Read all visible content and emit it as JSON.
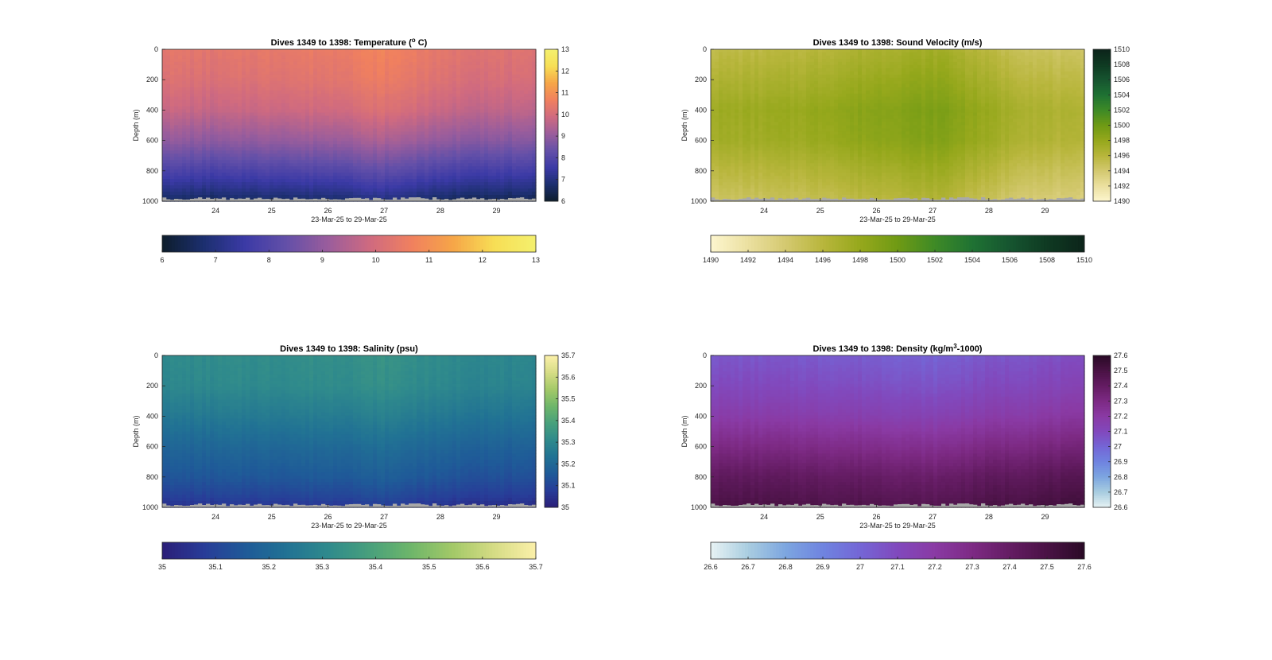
{
  "chart_data": [
    {
      "type": "heatmap",
      "title": "Dives 1349 to 1398: Temperature (",
      "title_sup": "o",
      "title_tail": " C)",
      "xlabel": "23-Mar-25 to 29-Mar-25",
      "ylabel": "Depth (m)",
      "x_ticks": [
        "24",
        "25",
        "26",
        "27",
        "28",
        "29"
      ],
      "x_tick_values": [
        24,
        25,
        26,
        27,
        28,
        29
      ],
      "xlim": [
        23.05,
        29.7
      ],
      "y_ticks": [
        "0",
        "200",
        "400",
        "600",
        "800",
        "1000"
      ],
      "y_tick_values": [
        0,
        200,
        400,
        600,
        800,
        1000
      ],
      "ylim": [
        0,
        1000
      ],
      "y_reversed": true,
      "colorbar": {
        "ticks": [
          "6",
          "7",
          "8",
          "9",
          "10",
          "11",
          "12",
          "13"
        ],
        "tick_values": [
          6,
          7,
          8,
          9,
          10,
          11,
          12,
          13
        ],
        "range": [
          6,
          13
        ],
        "colors": [
          "#0d1d2b",
          "#1c2f6f",
          "#3b3aa6",
          "#6450a8",
          "#9a5d9c",
          "#cf6a80",
          "#f0805f",
          "#f6a548",
          "#f7de55",
          "#f4f06e"
        ]
      },
      "profile": [
        [
          0,
          10.4
        ],
        [
          200,
          10.2
        ],
        [
          400,
          9.8
        ],
        [
          600,
          9.0
        ],
        [
          800,
          7.9
        ],
        [
          900,
          7.3
        ],
        [
          1000,
          6.6
        ]
      ],
      "day_offsets": [
        [
          23.1,
          0.0
        ],
        [
          24.0,
          -0.1
        ],
        [
          25.0,
          0.05
        ],
        [
          26.0,
          0.1
        ],
        [
          26.9,
          0.35
        ],
        [
          27.5,
          0.2
        ],
        [
          28.0,
          -0.05
        ],
        [
          29.0,
          -0.15
        ],
        [
          29.7,
          -0.25
        ]
      ]
    },
    {
      "type": "heatmap",
      "title": "Dives 1349 to 1398: Sound Velocity (m/s)",
      "xlabel": "23-Mar-25 to 29-Mar-25",
      "ylabel": "Depth (m)",
      "x_ticks": [
        "24",
        "25",
        "26",
        "27",
        "28",
        "29"
      ],
      "x_tick_values": [
        24,
        25,
        26,
        27,
        28,
        29
      ],
      "xlim": [
        23.05,
        29.7
      ],
      "y_ticks": [
        "0",
        "200",
        "400",
        "600",
        "800",
        "1000"
      ],
      "y_tick_values": [
        0,
        200,
        400,
        600,
        800,
        1000
      ],
      "ylim": [
        0,
        1000
      ],
      "y_reversed": true,
      "colorbar": {
        "ticks": [
          "1490",
          "1492",
          "1494",
          "1496",
          "1498",
          "1500",
          "1502",
          "1504",
          "1506",
          "1508",
          "1510"
        ],
        "tick_values": [
          1490,
          1492,
          1494,
          1496,
          1498,
          1500,
          1502,
          1504,
          1506,
          1508,
          1510
        ],
        "range": [
          1490,
          1510
        ],
        "colors": [
          "#fdf6cf",
          "#ebe0a0",
          "#d4c970",
          "#b8b63c",
          "#96a81c",
          "#6f9a14",
          "#3e8a26",
          "#1f7233",
          "#165530",
          "#0f3a22",
          "#0c241a"
        ]
      },
      "profile": [
        [
          0,
          1495.5
        ],
        [
          200,
          1496.5
        ],
        [
          400,
          1497.5
        ],
        [
          600,
          1497.2
        ],
        [
          800,
          1495.8
        ],
        [
          1000,
          1494.5
        ]
      ],
      "day_offsets": [
        [
          23.1,
          0.0
        ],
        [
          24.5,
          0.3
        ],
        [
          25.8,
          1.2
        ],
        [
          26.5,
          1.6
        ],
        [
          27.2,
          1.8
        ],
        [
          27.7,
          0.8
        ],
        [
          28.3,
          -0.2
        ],
        [
          29.0,
          -0.8
        ],
        [
          29.7,
          -1.2
        ]
      ]
    },
    {
      "type": "heatmap",
      "title": "Dives 1349 to 1398: Salinity (psu)",
      "xlabel": "23-Mar-25 to 29-Mar-25",
      "ylabel": "Depth (m)",
      "x_ticks": [
        "24",
        "25",
        "26",
        "27",
        "28",
        "29"
      ],
      "x_tick_values": [
        24,
        25,
        26,
        27,
        28,
        29
      ],
      "xlim": [
        23.05,
        29.7
      ],
      "y_ticks": [
        "0",
        "200",
        "400",
        "600",
        "800",
        "1000"
      ],
      "y_tick_values": [
        0,
        200,
        400,
        600,
        800,
        1000
      ],
      "ylim": [
        0,
        1000
      ],
      "y_reversed": true,
      "colorbar": {
        "ticks": [
          "35",
          "35.1",
          "35.2",
          "35.3",
          "35.4",
          "35.5",
          "35.6",
          "35.7"
        ],
        "tick_values": [
          35,
          35.1,
          35.2,
          35.3,
          35.4,
          35.5,
          35.6,
          35.7
        ],
        "range": [
          35,
          35.7
        ],
        "colors": [
          "#2b1e78",
          "#283c98",
          "#1f5a98",
          "#217294",
          "#2f8a8c",
          "#48a07c",
          "#6eb66a",
          "#a3c968",
          "#d6dc85",
          "#fbf0a9"
        ]
      },
      "profile": [
        [
          0,
          35.31
        ],
        [
          200,
          35.3
        ],
        [
          400,
          35.25
        ],
        [
          600,
          35.19
        ],
        [
          800,
          35.14
        ],
        [
          900,
          35.1
        ],
        [
          1000,
          35.05
        ]
      ],
      "day_offsets": [
        [
          23.1,
          0.0
        ],
        [
          25.0,
          0.01
        ],
        [
          26.5,
          0.02
        ],
        [
          27.0,
          0.03
        ],
        [
          28.0,
          0.0
        ],
        [
          29.0,
          -0.01
        ],
        [
          29.7,
          -0.02
        ]
      ]
    },
    {
      "type": "heatmap",
      "title": "Dives 1349 to 1398: Density (kg/m",
      "title_sup": "3",
      "title_tail": "-1000)",
      "xlabel": "23-Mar-25 to 29-Mar-25",
      "ylabel": "Depth (m)",
      "x_ticks": [
        "24",
        "25",
        "26",
        "27",
        "28",
        "29"
      ],
      "x_tick_values": [
        24,
        25,
        26,
        27,
        28,
        29
      ],
      "xlim": [
        23.05,
        29.7
      ],
      "y_ticks": [
        "0",
        "200",
        "400",
        "600",
        "800",
        "1000"
      ],
      "y_tick_values": [
        0,
        200,
        400,
        600,
        800,
        1000
      ],
      "ylim": [
        0,
        1000
      ],
      "y_reversed": true,
      "colorbar": {
        "ticks": [
          "26.6",
          "26.7",
          "26.8",
          "26.9",
          "27",
          "27.1",
          "27.2",
          "27.3",
          "27.4",
          "27.5",
          "27.6"
        ],
        "tick_values": [
          26.6,
          26.7,
          26.8,
          26.9,
          27,
          27.1,
          27.2,
          27.3,
          27.4,
          27.5,
          27.6
        ],
        "range": [
          26.6,
          27.6
        ],
        "colors": [
          "#e8f3f4",
          "#a9cde0",
          "#7da6e0",
          "#6f84e0",
          "#7466d6",
          "#8149bd",
          "#8a3aa4",
          "#7d2a84",
          "#641c63",
          "#4a1245",
          "#2a0a26"
        ]
      },
      "profile": [
        [
          0,
          27.05
        ],
        [
          200,
          27.1
        ],
        [
          400,
          27.18
        ],
        [
          600,
          27.3
        ],
        [
          800,
          27.42
        ],
        [
          1000,
          27.5
        ]
      ],
      "day_offsets": [
        [
          23.1,
          0.0
        ],
        [
          24.0,
          0.0
        ],
        [
          25.0,
          -0.01
        ],
        [
          26.0,
          -0.02
        ],
        [
          27.0,
          -0.04
        ],
        [
          28.0,
          0.0
        ],
        [
          29.0,
          0.02
        ],
        [
          29.7,
          0.03
        ]
      ]
    }
  ]
}
